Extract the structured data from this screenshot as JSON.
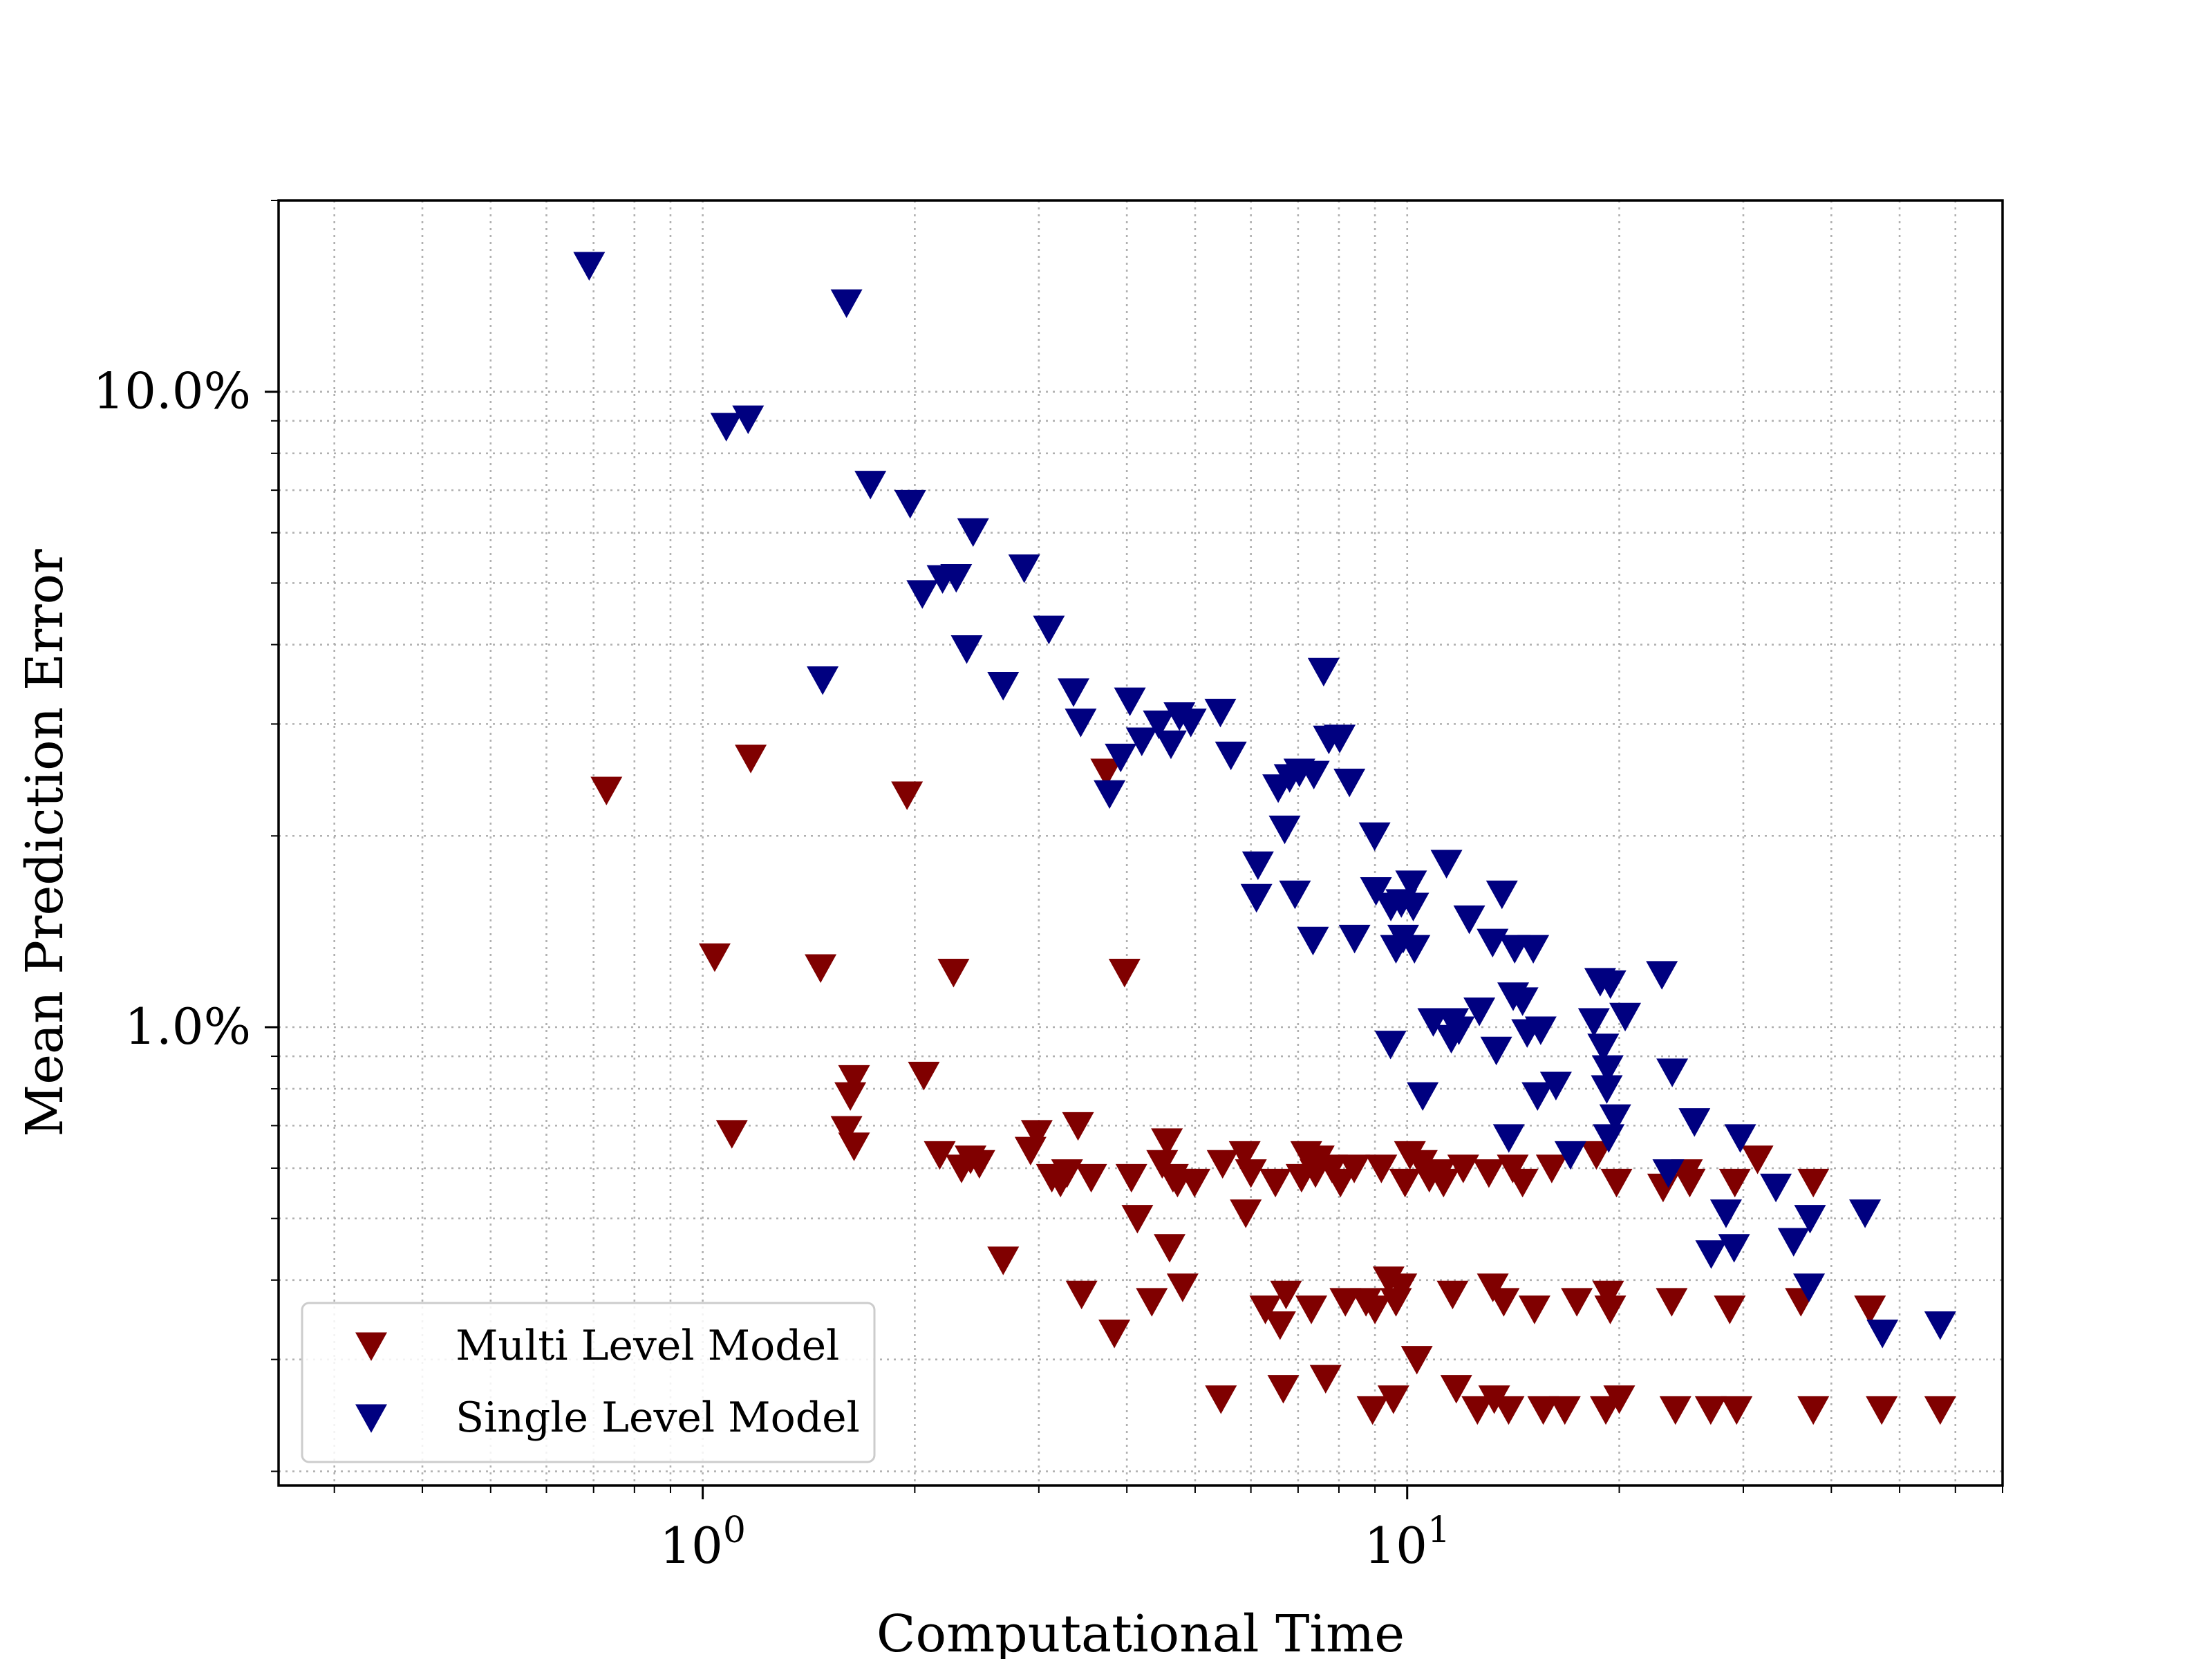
{
  "chart_data": {
    "type": "scatter",
    "xlabel": "Computational Time",
    "ylabel": "Mean Prediction Error",
    "xscale": "log",
    "yscale": "log",
    "xlim": [
      0.25,
      70
    ],
    "ylim": [
      0.0019,
      0.2
    ],
    "x_ticks": [
      {
        "value": 1,
        "label": "10^0"
      },
      {
        "value": 10,
        "label": "10^1"
      }
    ],
    "y_ticks": [
      {
        "value": 0.01,
        "label": "1.0%"
      },
      {
        "value": 0.1,
        "label": "10.0%"
      }
    ],
    "grid": true,
    "legend_position": "lower-left",
    "marker": "triangle-down",
    "series": [
      {
        "name": "Multi Level Model",
        "color": "#800000",
        "points": [
          [
            0.73,
            0.0236
          ],
          [
            1.04,
            0.0129
          ],
          [
            1.1,
            0.0068
          ],
          [
            1.17,
            0.0265
          ],
          [
            1.47,
            0.0124
          ],
          [
            1.6,
            0.0069
          ],
          [
            1.62,
            0.0078
          ],
          [
            1.64,
            0.0083
          ],
          [
            1.64,
            0.0065
          ],
          [
            1.95,
            0.0232
          ],
          [
            2.06,
            0.0084
          ],
          [
            2.17,
            0.0063
          ],
          [
            2.27,
            0.0122
          ],
          [
            2.33,
            0.006
          ],
          [
            2.4,
            0.0062
          ],
          [
            2.47,
            0.0061
          ],
          [
            2.67,
            0.0043
          ],
          [
            2.92,
            0.0064
          ],
          [
            2.98,
            0.0068
          ],
          [
            3.13,
            0.0058
          ],
          [
            3.22,
            0.0057
          ],
          [
            3.29,
            0.0059
          ],
          [
            3.41,
            0.007
          ],
          [
            3.45,
            0.0038
          ],
          [
            3.56,
            0.0058
          ],
          [
            3.74,
            0.0252
          ],
          [
            3.84,
            0.0033
          ],
          [
            3.97,
            0.0122
          ],
          [
            4.06,
            0.0058
          ],
          [
            4.14,
            0.005
          ],
          [
            4.34,
            0.0037
          ],
          [
            4.49,
            0.0061
          ],
          [
            4.56,
            0.0066
          ],
          [
            4.6,
            0.0045
          ],
          [
            4.65,
            0.0058
          ],
          [
            4.72,
            0.0057
          ],
          [
            4.8,
            0.0039
          ],
          [
            4.99,
            0.0057
          ],
          [
            5.44,
            0.0026
          ],
          [
            5.47,
            0.0061
          ],
          [
            5.88,
            0.0063
          ],
          [
            5.9,
            0.0051
          ],
          [
            6.0,
            0.0059
          ],
          [
            6.29,
            0.0036
          ],
          [
            6.5,
            0.0057
          ],
          [
            6.6,
            0.0034
          ],
          [
            6.67,
            0.0027
          ],
          [
            6.73,
            0.0038
          ],
          [
            7.08,
            0.0058
          ],
          [
            7.19,
            0.0063
          ],
          [
            7.31,
            0.0036
          ],
          [
            7.41,
            0.0059
          ],
          [
            7.49,
            0.0062
          ],
          [
            7.66,
            0.0028
          ],
          [
            7.82,
            0.006
          ],
          [
            8.04,
            0.0057
          ],
          [
            8.17,
            0.0037
          ],
          [
            8.41,
            0.006
          ],
          [
            8.74,
            0.0037
          ],
          [
            8.93,
            0.0025
          ],
          [
            9.0,
            0.0036
          ],
          [
            9.19,
            0.006
          ],
          [
            9.41,
            0.004
          ],
          [
            9.56,
            0.0026
          ],
          [
            9.64,
            0.0037
          ],
          [
            9.81,
            0.0039
          ],
          [
            9.93,
            0.0057
          ],
          [
            10.09,
            0.0063
          ],
          [
            10.32,
            0.003
          ],
          [
            10.49,
            0.0061
          ],
          [
            10.75,
            0.0058
          ],
          [
            11.13,
            0.0059
          ],
          [
            11.26,
            0.0057
          ],
          [
            11.6,
            0.0038
          ],
          [
            11.74,
            0.0027
          ],
          [
            12.01,
            0.006
          ],
          [
            12.58,
            0.0025
          ],
          [
            13.06,
            0.0059
          ],
          [
            13.23,
            0.0039
          ],
          [
            13.29,
            0.0026
          ],
          [
            13.71,
            0.0037
          ],
          [
            13.93,
            0.0025
          ],
          [
            14.12,
            0.006
          ],
          [
            14.58,
            0.0057
          ],
          [
            15.16,
            0.0036
          ],
          [
            15.6,
            0.0025
          ],
          [
            16.04,
            0.006
          ],
          [
            16.74,
            0.0025
          ],
          [
            17.41,
            0.0037
          ],
          [
            18.56,
            0.0063
          ],
          [
            19.14,
            0.0025
          ],
          [
            19.29,
            0.0038
          ],
          [
            19.42,
            0.0036
          ],
          [
            19.82,
            0.0057
          ],
          [
            20.0,
            0.0026
          ],
          [
            23.08,
            0.0056
          ],
          [
            23.74,
            0.0037
          ],
          [
            24.03,
            0.0025
          ],
          [
            24.95,
            0.0059
          ],
          [
            25.18,
            0.0057
          ],
          [
            26.97,
            0.0025
          ],
          [
            28.7,
            0.0036
          ],
          [
            29.18,
            0.0057
          ],
          [
            29.35,
            0.0025
          ],
          [
            31.43,
            0.0062
          ],
          [
            36.21,
            0.0037
          ],
          [
            37.71,
            0.0025
          ],
          [
            37.71,
            0.0057
          ],
          [
            45.39,
            0.0036
          ],
          [
            47.16,
            0.0025
          ],
          [
            57.1,
            0.0025
          ]
        ]
      },
      {
        "name": "Single Level Model",
        "color": "#000080",
        "points": [
          [
            0.69,
            0.158
          ],
          [
            1.08,
            0.0882
          ],
          [
            1.16,
            0.0906
          ],
          [
            1.48,
            0.0352
          ],
          [
            1.6,
            0.138
          ],
          [
            1.73,
            0.0715
          ],
          [
            1.97,
            0.0667
          ],
          [
            2.05,
            0.0481
          ],
          [
            2.19,
            0.0508
          ],
          [
            2.29,
            0.051
          ],
          [
            2.37,
            0.0394
          ],
          [
            2.42,
            0.0602
          ],
          [
            2.67,
            0.0345
          ],
          [
            2.86,
            0.0528
          ],
          [
            3.1,
            0.0423
          ],
          [
            3.36,
            0.0337
          ],
          [
            3.44,
            0.0302
          ],
          [
            3.78,
            0.0233
          ],
          [
            3.92,
            0.0266
          ],
          [
            4.04,
            0.0326
          ],
          [
            4.2,
            0.0282
          ],
          [
            4.44,
            0.03
          ],
          [
            4.62,
            0.0279
          ],
          [
            4.75,
            0.0309
          ],
          [
            4.93,
            0.0302
          ],
          [
            5.43,
            0.0313
          ],
          [
            5.62,
            0.0268
          ],
          [
            6.11,
            0.016
          ],
          [
            6.14,
            0.018
          ],
          [
            6.56,
            0.0238
          ],
          [
            6.7,
            0.0205
          ],
          [
            6.81,
            0.0247
          ],
          [
            6.93,
            0.0162
          ],
          [
            7.03,
            0.0252
          ],
          [
            7.35,
            0.0137
          ],
          [
            7.37,
            0.025
          ],
          [
            7.61,
            0.0363
          ],
          [
            7.74,
            0.0284
          ],
          [
            8.02,
            0.0285
          ],
          [
            8.28,
            0.0243
          ],
          [
            8.42,
            0.0138
          ],
          [
            8.99,
            0.02
          ],
          [
            9.03,
            0.0164
          ],
          [
            9.47,
            0.0094
          ],
          [
            9.48,
            0.0155
          ],
          [
            9.64,
            0.0133
          ],
          [
            9.81,
            0.0157
          ],
          [
            9.87,
            0.0138
          ],
          [
            10.13,
            0.0168
          ],
          [
            10.2,
            0.0155
          ],
          [
            10.24,
            0.0133
          ],
          [
            10.52,
            0.0078
          ],
          [
            10.89,
            0.0102
          ],
          [
            11.37,
            0.0181
          ],
          [
            11.55,
            0.0096
          ],
          [
            11.62,
            0.0102
          ],
          [
            11.84,
            0.0099
          ],
          [
            12.25,
            0.0148
          ],
          [
            12.66,
            0.0106
          ],
          [
            13.22,
            0.0136
          ],
          [
            13.38,
            0.0092
          ],
          [
            13.63,
            0.0162
          ],
          [
            13.94,
            0.0067
          ],
          [
            14.14,
            0.0112
          ],
          [
            14.21,
            0.0133
          ],
          [
            14.58,
            0.011
          ],
          [
            14.8,
            0.0098
          ],
          [
            15.1,
            0.0133
          ],
          [
            15.31,
            0.0078
          ],
          [
            15.47,
            0.0099
          ],
          [
            16.26,
            0.0081
          ],
          [
            17.05,
            0.0063
          ],
          [
            18.41,
            0.0102
          ],
          [
            18.79,
            0.0118
          ],
          [
            18.98,
            0.0093
          ],
          [
            19.2,
            0.008
          ],
          [
            19.26,
            0.0086
          ],
          [
            19.32,
            0.0067
          ],
          [
            19.43,
            0.0117
          ],
          [
            19.74,
            0.0072
          ],
          [
            20.39,
            0.0104
          ],
          [
            22.99,
            0.0121
          ],
          [
            23.48,
            0.0059
          ],
          [
            23.78,
            0.0085
          ],
          [
            25.57,
            0.0071
          ],
          [
            27.01,
            0.0044
          ],
          [
            28.35,
            0.0051
          ],
          [
            29.11,
            0.0045
          ],
          [
            29.7,
            0.0067
          ],
          [
            33.37,
            0.0056
          ],
          [
            35.36,
            0.0046
          ],
          [
            37.19,
            0.0039
          ],
          [
            37.31,
            0.005
          ],
          [
            44.66,
            0.0051
          ],
          [
            47.27,
            0.0033
          ],
          [
            57.1,
            0.0034
          ]
        ]
      }
    ]
  }
}
